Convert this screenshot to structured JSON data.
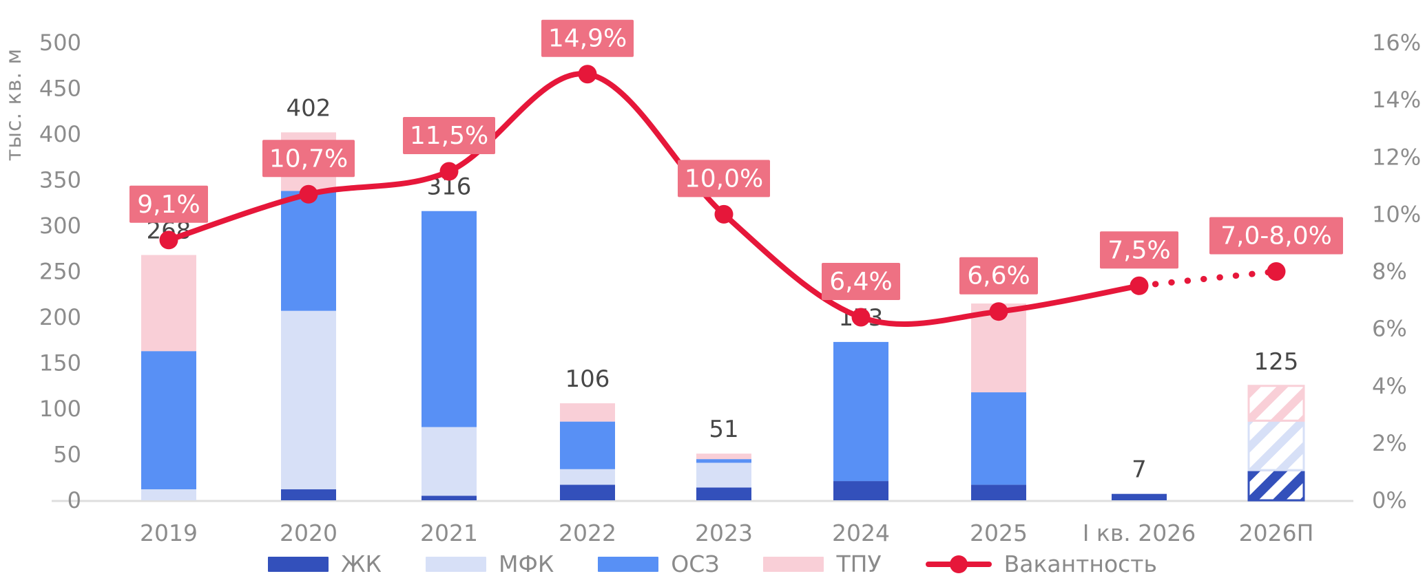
{
  "chart_data": {
    "type": "combo-stacked-bar-line",
    "categories": [
      "2019",
      "2020",
      "2021",
      "2022",
      "2023",
      "2024",
      "2025",
      "I кв. 2026",
      "2026П"
    ],
    "bar_series": [
      {
        "name": "ЖК",
        "color": "#3350bb",
        "values": [
          0,
          12,
          5,
          17,
          14,
          21,
          17,
          7,
          33
        ]
      },
      {
        "name": "МФК",
        "color": "#d7e0f7",
        "values": [
          12,
          195,
          75,
          17,
          27,
          0,
          0,
          0,
          54
        ]
      },
      {
        "name": "ОСЗ",
        "color": "#5890f5",
        "values": [
          151,
          131,
          236,
          52,
          4,
          152,
          101,
          0,
          0
        ]
      },
      {
        "name": "ТПУ",
        "color": "#f9cfd7",
        "values": [
          105,
          64,
          0,
          20,
          6,
          0,
          97,
          0,
          38
        ]
      }
    ],
    "bar_total_labels": [
      "268",
      "402",
      "316",
      "106",
      "51",
      "173",
      "",
      "7",
      "125"
    ],
    "hatched_category_index": 8,
    "line_series": {
      "name": "Вакантность",
      "color": "#e6173a",
      "values_pct": [
        9.1,
        10.7,
        11.5,
        14.9,
        10.0,
        6.4,
        6.6,
        7.5,
        8.0
      ],
      "labels": [
        "9,1%",
        "10,7%",
        "11,5%",
        "14,9%",
        "10,0%",
        "6,4%",
        "6,6%",
        "7,5%",
        "7,0-8,0%"
      ],
      "forecast_dotted_from_index": 7
    },
    "left_axis": {
      "title": "тыс. кв. м",
      "min": 0,
      "max": 500,
      "step": 50,
      "ticks": [
        "0",
        "50",
        "100",
        "150",
        "200",
        "250",
        "300",
        "350",
        "400",
        "450",
        "500"
      ]
    },
    "right_axis": {
      "min": 0,
      "max": 16,
      "step": 2,
      "ticks": [
        "0%",
        "2%",
        "4%",
        "6%",
        "8%",
        "10%",
        "12%",
        "14%",
        "16%"
      ]
    },
    "legend_order": [
      "ЖК",
      "МФК",
      "ОСЗ",
      "ТПУ",
      "Вакантность"
    ],
    "colors": {
      "badge_bg": "#ee7183",
      "badge_text": "#ffffff",
      "total_label": "#474747",
      "axis_text": "#8c8c8c",
      "baseline": "#dedede",
      "background": "#ffffff"
    },
    "grid": "off",
    "legend_position": "bottom"
  }
}
